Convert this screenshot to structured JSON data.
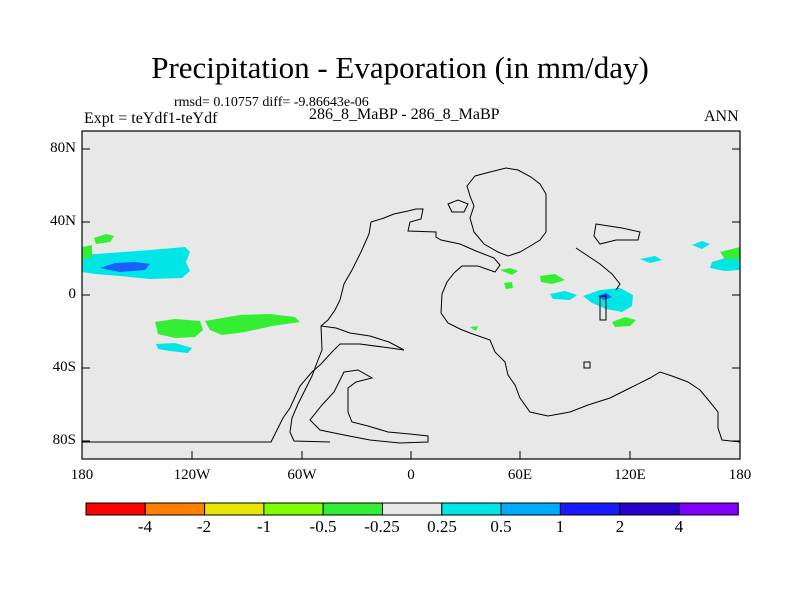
{
  "title": "Precipitation - Evaporation (in mm/day)",
  "stats": "rmsd= 0.10757 diff= -9.86643e-06",
  "expt": "Expt = teYdf1-teYdf",
  "case": "286_8_MaBP - 286_8_MaBP",
  "season": "ANN",
  "lat_labels": [
    "80N",
    "40N",
    "0",
    "40S",
    "80S"
  ],
  "lon_labels": [
    "180",
    "120W",
    "60W",
    "0",
    "60E",
    "120E",
    "180"
  ],
  "colorbar": {
    "labels": [
      "-4",
      "-2",
      "-1",
      "-0.5",
      "-0.25",
      "0.25",
      "0.5",
      "1",
      "2",
      "4"
    ],
    "colors": [
      "#ff0000",
      "#ff8000",
      "#e6e600",
      "#80ff00",
      "#33ee33",
      "#e8e8e8",
      "#00e6e6",
      "#00aaff",
      "#1a1aff",
      "#2a00cc",
      "#8000ff"
    ]
  },
  "colors": {
    "background": "#e8e8e8",
    "land_outline": "#000000",
    "green": "#33ee33",
    "cyan": "#00e6e6",
    "blue": "#1a60ff"
  }
}
